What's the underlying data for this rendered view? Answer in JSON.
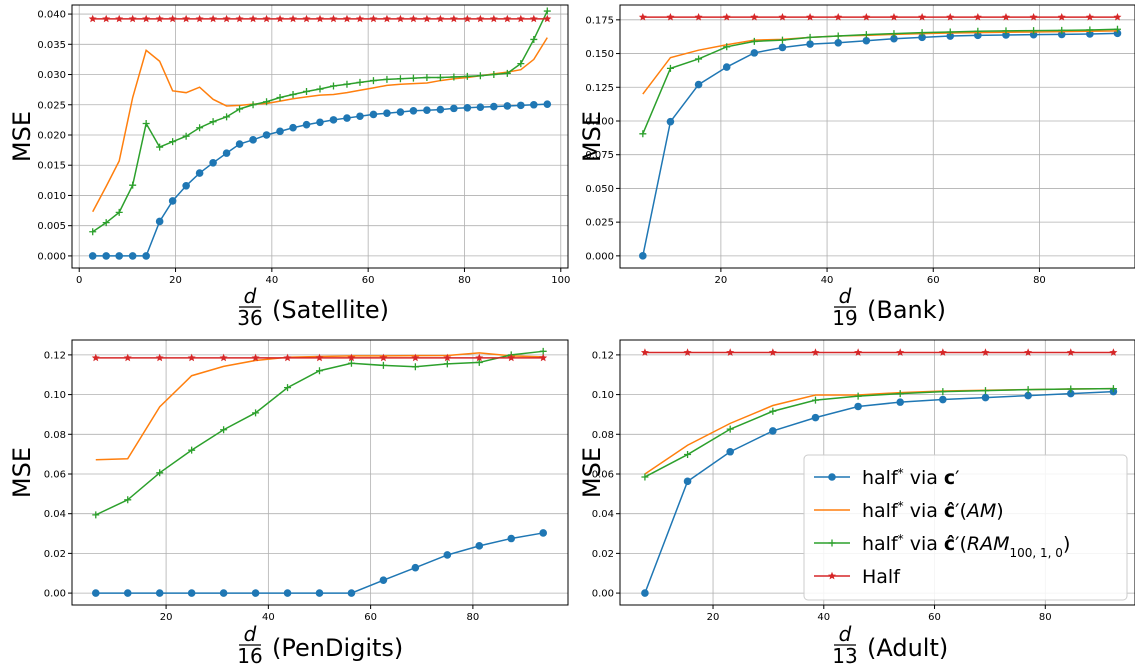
{
  "colors": {
    "series": [
      "#1f77b4",
      "#ff7f0e",
      "#2ca02c",
      "#d62728"
    ],
    "grid": "#b0b0b0",
    "axes": "#000000"
  },
  "legend": {
    "placement": "lower-right of bottom-right panel",
    "entries": [
      {
        "prefix": "half",
        "sup": "*",
        "mid": " via ",
        "bold": "c",
        "post": "′",
        "italic": "",
        "sub": "",
        "tail": ""
      },
      {
        "prefix": "half",
        "sup": "*",
        "mid": " via ",
        "bold": "ĉ",
        "post": "′(",
        "italic": "AM",
        "sub": "",
        "tail": ")"
      },
      {
        "prefix": "half",
        "sup": "*",
        "mid": " via ",
        "bold": "ĉ",
        "post": "′(",
        "italic": "RAM",
        "sub": "100, 1, 0",
        "tail": ")"
      },
      {
        "prefix": "Half",
        "sup": "",
        "mid": "",
        "bold": "",
        "post": "",
        "italic": "",
        "sub": "",
        "tail": ""
      }
    ]
  },
  "chart_data": [
    {
      "type": "line",
      "ylabel": "MSE",
      "xlabel": {
        "num": "d",
        "den": "36",
        "name": "(Satellite)"
      },
      "xlim": [
        -1.5,
        101.5
      ],
      "ylim": [
        -0.002,
        0.0415
      ],
      "xticks": [
        0,
        20,
        40,
        60,
        80,
        100
      ],
      "yticks": [
        0.0,
        0.005,
        0.01,
        0.015,
        0.02,
        0.025,
        0.03,
        0.035,
        0.04
      ],
      "ytick_labels": [
        "0.000",
        "0.005",
        "0.010",
        "0.015",
        "0.020",
        "0.025",
        "0.030",
        "0.035",
        "0.040"
      ],
      "grid": true,
      "x": [
        2.8,
        5.6,
        8.3,
        11.1,
        13.9,
        16.7,
        19.4,
        22.2,
        25.0,
        27.8,
        30.6,
        33.3,
        36.1,
        38.9,
        41.7,
        44.4,
        47.2,
        50.0,
        52.8,
        55.6,
        58.3,
        61.1,
        63.9,
        66.7,
        69.4,
        72.2,
        75.0,
        77.8,
        80.6,
        83.3,
        86.1,
        88.9,
        91.7,
        94.4,
        97.2
      ],
      "series": [
        {
          "name": "half* via c′",
          "marker": "circle",
          "values": [
            0.0,
            0.0,
            0.0,
            0.0,
            0.0,
            0.0057,
            0.0091,
            0.0116,
            0.0137,
            0.0154,
            0.017,
            0.0185,
            0.0192,
            0.02,
            0.0206,
            0.0212,
            0.0217,
            0.0221,
            0.0225,
            0.0228,
            0.0231,
            0.0234,
            0.0236,
            0.0238,
            0.024,
            0.0241,
            0.0242,
            0.0244,
            0.0245,
            0.0246,
            0.0247,
            0.0248,
            0.0249,
            0.025,
            0.0251
          ]
        },
        {
          "name": "half* via ĉ′(AM)",
          "marker": "none",
          "values": [
            0.0073,
            0.0115,
            0.0157,
            0.0262,
            0.034,
            0.0322,
            0.0273,
            0.027,
            0.0279,
            0.0259,
            0.0248,
            0.0249,
            0.0251,
            0.0252,
            0.0256,
            0.026,
            0.0263,
            0.0266,
            0.0267,
            0.027,
            0.0274,
            0.0278,
            0.0282,
            0.0284,
            0.0285,
            0.0286,
            0.029,
            0.0293,
            0.0295,
            0.0298,
            0.0301,
            0.0304,
            0.0308,
            0.0325,
            0.0361
          ]
        },
        {
          "name": "half* via ĉ′(RAM100,1,0)",
          "marker": "plus",
          "values": [
            0.004,
            0.0055,
            0.0072,
            0.0117,
            0.0219,
            0.018,
            0.0189,
            0.0198,
            0.0212,
            0.0222,
            0.023,
            0.0243,
            0.025,
            0.0255,
            0.0262,
            0.0267,
            0.0272,
            0.0276,
            0.0281,
            0.0284,
            0.0287,
            0.029,
            0.0292,
            0.0293,
            0.0294,
            0.0295,
            0.0295,
            0.0296,
            0.0297,
            0.0298,
            0.03,
            0.0302,
            0.0318,
            0.0358,
            0.0405
          ]
        },
        {
          "name": "Half",
          "marker": "star",
          "values": [
            0.0392,
            0.0392,
            0.0392,
            0.0392,
            0.0392,
            0.0392,
            0.0392,
            0.0392,
            0.0392,
            0.0392,
            0.0392,
            0.0392,
            0.0392,
            0.0392,
            0.0392,
            0.0392,
            0.0392,
            0.0392,
            0.0392,
            0.0392,
            0.0392,
            0.0392,
            0.0392,
            0.0392,
            0.0392,
            0.0392,
            0.0392,
            0.0392,
            0.0392,
            0.0392,
            0.0392,
            0.0392,
            0.0392,
            0.0392,
            0.0392
          ]
        }
      ]
    },
    {
      "type": "line",
      "ylabel": "MSE",
      "xlabel": {
        "num": "d",
        "den": "19",
        "name": "(Bank)"
      },
      "xlim": [
        1.0,
        98.0
      ],
      "ylim": [
        -0.009,
        0.186
      ],
      "xticks": [
        20,
        40,
        60,
        80
      ],
      "yticks": [
        0.0,
        0.025,
        0.05,
        0.075,
        0.1,
        0.125,
        0.15,
        0.175
      ],
      "ytick_labels": [
        "0.000",
        "0.025",
        "0.050",
        "0.075",
        "0.100",
        "0.125",
        "0.150",
        "0.175"
      ],
      "grid": true,
      "x": [
        5.3,
        10.5,
        15.8,
        21.1,
        26.3,
        31.6,
        36.8,
        42.1,
        47.4,
        52.6,
        57.9,
        63.2,
        68.4,
        73.7,
        78.9,
        84.2,
        89.5,
        94.7
      ],
      "series": [
        {
          "name": "half* via c′",
          "marker": "circle",
          "values": [
            0.0,
            0.0995,
            0.127,
            0.14,
            0.1505,
            0.1545,
            0.157,
            0.158,
            0.1595,
            0.161,
            0.162,
            0.163,
            0.1635,
            0.1638,
            0.164,
            0.1642,
            0.1645,
            0.165
          ]
        },
        {
          "name": "half* via ĉ′(AM)",
          "marker": "none",
          "values": [
            0.12,
            0.147,
            0.1525,
            0.1565,
            0.16,
            0.1605,
            0.162,
            0.163,
            0.1635,
            0.1642,
            0.1648,
            0.1652,
            0.1655,
            0.1658,
            0.166,
            0.1663,
            0.1665,
            0.1668
          ]
        },
        {
          "name": "half* via ĉ′(RAM100,1,0)",
          "marker": "plus",
          "values": [
            0.0905,
            0.139,
            0.146,
            0.155,
            0.159,
            0.16,
            0.162,
            0.163,
            0.164,
            0.1648,
            0.1655,
            0.166,
            0.1665,
            0.1668,
            0.167,
            0.1672,
            0.1675,
            0.168
          ]
        },
        {
          "name": "Half",
          "marker": "star",
          "values": [
            0.177,
            0.177,
            0.177,
            0.177,
            0.177,
            0.177,
            0.177,
            0.177,
            0.177,
            0.177,
            0.177,
            0.177,
            0.177,
            0.177,
            0.177,
            0.177,
            0.177,
            0.177
          ]
        }
      ]
    },
    {
      "type": "line",
      "ylabel": "MSE",
      "xlabel": {
        "num": "d",
        "den": "16",
        "name": "(PenDigits)"
      },
      "xlim": [
        1.6,
        98.6
      ],
      "ylim": [
        -0.006,
        0.1275
      ],
      "xticks": [
        20,
        40,
        60,
        80
      ],
      "yticks": [
        0.0,
        0.02,
        0.04,
        0.06,
        0.08,
        0.1,
        0.12
      ],
      "ytick_labels": [
        "0.00",
        "0.02",
        "0.04",
        "0.06",
        "0.08",
        "0.10",
        "0.12"
      ],
      "grid": true,
      "x": [
        6.25,
        12.5,
        18.75,
        25.0,
        31.25,
        37.5,
        43.75,
        50.0,
        56.25,
        62.5,
        68.75,
        75.0,
        81.25,
        87.5,
        93.75
      ],
      "series": [
        {
          "name": "half* via c′",
          "marker": "circle",
          "values": [
            0.0,
            0.0,
            0.0,
            0.0,
            0.0,
            0.0,
            0.0,
            0.0,
            0.0,
            0.0065,
            0.0128,
            0.0192,
            0.0238,
            0.0275,
            0.0303
          ]
        },
        {
          "name": "half* via ĉ′(AM)",
          "marker": "none",
          "values": [
            0.0672,
            0.0677,
            0.0938,
            0.1095,
            0.1142,
            0.1172,
            0.1188,
            0.1192,
            0.1195,
            0.1195,
            0.1196,
            0.1197,
            0.121,
            0.1195,
            0.119
          ]
        },
        {
          "name": "half* via ĉ′(RAM100,1,0)",
          "marker": "plus",
          "values": [
            0.0394,
            0.047,
            0.0606,
            0.072,
            0.0823,
            0.0908,
            0.1035,
            0.112,
            0.1158,
            0.1147,
            0.114,
            0.1155,
            0.1162,
            0.12,
            0.1218
          ]
        },
        {
          "name": "Half",
          "marker": "star",
          "values": [
            0.1185,
            0.1185,
            0.1185,
            0.1185,
            0.1185,
            0.1185,
            0.1185,
            0.1185,
            0.1185,
            0.1185,
            0.1185,
            0.1185,
            0.1185,
            0.1185,
            0.1185
          ]
        }
      ]
    },
    {
      "type": "line",
      "ylabel": "MSE",
      "xlabel": {
        "num": "d",
        "den": "13",
        "name": "(Adult)"
      },
      "xlim": [
        3.2,
        96.2
      ],
      "ylim": [
        -0.006,
        0.1275
      ],
      "xticks": [
        20,
        40,
        60,
        80
      ],
      "yticks": [
        0.0,
        0.02,
        0.04,
        0.06,
        0.08,
        0.1,
        0.12
      ],
      "ytick_labels": [
        "0.00",
        "0.02",
        "0.04",
        "0.06",
        "0.08",
        "0.10",
        "0.12"
      ],
      "grid": true,
      "x": [
        7.7,
        15.4,
        23.1,
        30.8,
        38.5,
        46.2,
        53.8,
        61.5,
        69.2,
        76.9,
        84.6,
        92.3
      ],
      "series": [
        {
          "name": "half* via c′",
          "marker": "circle",
          "values": [
            0.0,
            0.0563,
            0.0712,
            0.0817,
            0.0884,
            0.094,
            0.0962,
            0.0975,
            0.0985,
            0.0995,
            0.1005,
            0.1015
          ]
        },
        {
          "name": "half* via ĉ′(AM)",
          "marker": "none",
          "values": [
            0.06,
            0.0745,
            0.0855,
            0.0945,
            0.0998,
            0.0998,
            0.101,
            0.1018,
            0.1022,
            0.1025,
            0.1028,
            0.103
          ]
        },
        {
          "name": "half* via ĉ′(RAM100,1,0)",
          "marker": "plus",
          "values": [
            0.0585,
            0.0698,
            0.0826,
            0.0916,
            0.0972,
            0.0992,
            0.1005,
            0.1015,
            0.102,
            0.1025,
            0.1028,
            0.103
          ]
        },
        {
          "name": "Half",
          "marker": "star",
          "values": [
            0.1212,
            0.1212,
            0.1212,
            0.1212,
            0.1212,
            0.1212,
            0.1212,
            0.1212,
            0.1212,
            0.1212,
            0.1212,
            0.1212
          ]
        }
      ]
    }
  ]
}
